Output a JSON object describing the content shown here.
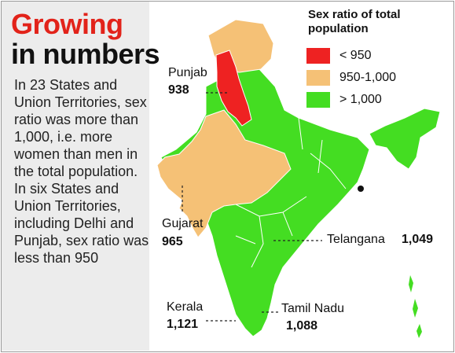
{
  "title": {
    "line1": "Growing",
    "line2": "in numbers"
  },
  "description": {
    "para1": "In 23 States and Union Territories, sex ratio was more than 1,000, i.e. more women than men in the total population.",
    "para2": "In six States and Union Territories, including Delhi and Punjab, sex ratio was less than 950"
  },
  "legend": {
    "title": "Sex ratio of total population",
    "items": [
      {
        "label": "< 950",
        "color": "#ee2222"
      },
      {
        "label": "950-1,000",
        "color": "#f5c176"
      },
      {
        "label": "> 1,000",
        "color": "#44dd22"
      }
    ]
  },
  "callouts": [
    {
      "name": "Punjab",
      "value": "938"
    },
    {
      "name": "Gujarat",
      "value": "965"
    },
    {
      "name": "Telangana",
      "value": "1,049"
    },
    {
      "name": "Kerala",
      "value": "1,121"
    },
    {
      "name": "Tamil Nadu",
      "value": "1,088"
    }
  ]
}
